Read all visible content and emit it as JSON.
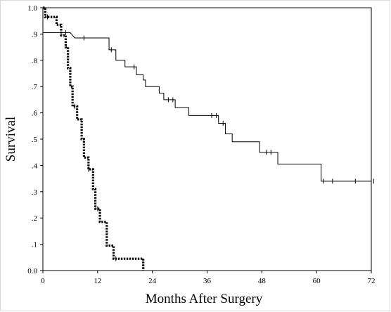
{
  "chart_data": {
    "type": "line",
    "chart_kind": "kaplan-meier",
    "title": "",
    "xlabel": "Months After Surgery",
    "ylabel": "Survival",
    "xlim": [
      0,
      72
    ],
    "ylim": [
      0,
      1.0
    ],
    "x_ticks": [
      0,
      12,
      24,
      36,
      48,
      60,
      72
    ],
    "x_tick_labels": [
      "0",
      "12",
      "24",
      "36",
      "48",
      "60",
      "72"
    ],
    "y_ticks": [
      0,
      0.1,
      0.2,
      0.3,
      0.4,
      0.5,
      0.6,
      0.7,
      0.8,
      0.9,
      1.0
    ],
    "y_tick_labels": [
      "0.0",
      ".1",
      ".2",
      ".3",
      ".4",
      ".5",
      ".6",
      ".7",
      ".8",
      ".9",
      "1.0"
    ],
    "grid": false,
    "legend": "none",
    "series": [
      {
        "style": "solid",
        "color": "#000000",
        "steps": [
          [
            0,
            0.905
          ],
          [
            6,
            0.905
          ],
          [
            7,
            0.885
          ],
          [
            14.5,
            0.885
          ],
          [
            14.5,
            0.84
          ],
          [
            16,
            0.84
          ],
          [
            16,
            0.8
          ],
          [
            18,
            0.8
          ],
          [
            18,
            0.775
          ],
          [
            20.5,
            0.775
          ],
          [
            20.5,
            0.745
          ],
          [
            22,
            0.745
          ],
          [
            22,
            0.725
          ],
          [
            22.5,
            0.725
          ],
          [
            22.5,
            0.7
          ],
          [
            25.5,
            0.7
          ],
          [
            25.5,
            0.675
          ],
          [
            26.5,
            0.675
          ],
          [
            26.5,
            0.65
          ],
          [
            29,
            0.65
          ],
          [
            29,
            0.62
          ],
          [
            32,
            0.62
          ],
          [
            32,
            0.59
          ],
          [
            38.5,
            0.59
          ],
          [
            38.5,
            0.56
          ],
          [
            40,
            0.56
          ],
          [
            40,
            0.52
          ],
          [
            41.5,
            0.52
          ],
          [
            41.5,
            0.49
          ],
          [
            47.5,
            0.49
          ],
          [
            47.5,
            0.45
          ],
          [
            51.5,
            0.45
          ],
          [
            51.5,
            0.405
          ],
          [
            61,
            0.405
          ],
          [
            61,
            0.34
          ],
          [
            74,
            0.34
          ]
        ],
        "censored_x": [
          5,
          9,
          15,
          20,
          27.5,
          28.5,
          37,
          38,
          39.5,
          49,
          50,
          61.5,
          63.5,
          68.5,
          72.5
        ]
      },
      {
        "style": "dotted",
        "color": "#000000",
        "steps": [
          [
            0,
            1.0
          ],
          [
            0.5,
            1.0
          ],
          [
            0.5,
            0.965
          ],
          [
            3,
            0.965
          ],
          [
            3,
            0.935
          ],
          [
            4,
            0.935
          ],
          [
            4,
            0.895
          ],
          [
            5,
            0.895
          ],
          [
            5,
            0.85
          ],
          [
            5.5,
            0.85
          ],
          [
            5.5,
            0.77
          ],
          [
            6,
            0.77
          ],
          [
            6,
            0.7
          ],
          [
            6.5,
            0.7
          ],
          [
            6.5,
            0.625
          ],
          [
            7.5,
            0.625
          ],
          [
            7.5,
            0.575
          ],
          [
            8.5,
            0.575
          ],
          [
            8.5,
            0.5
          ],
          [
            9,
            0.5
          ],
          [
            9,
            0.43
          ],
          [
            10,
            0.43
          ],
          [
            10,
            0.385
          ],
          [
            11,
            0.385
          ],
          [
            11,
            0.31
          ],
          [
            11.5,
            0.31
          ],
          [
            11.5,
            0.235
          ],
          [
            12.5,
            0.235
          ],
          [
            12.5,
            0.185
          ],
          [
            14,
            0.185
          ],
          [
            14,
            0.095
          ],
          [
            15.5,
            0.095
          ],
          [
            15.5,
            0.045
          ],
          [
            22,
            0.045
          ],
          [
            22,
            0.0
          ]
        ],
        "censored_x": [
          1,
          7,
          10,
          12,
          16
        ]
      }
    ]
  }
}
